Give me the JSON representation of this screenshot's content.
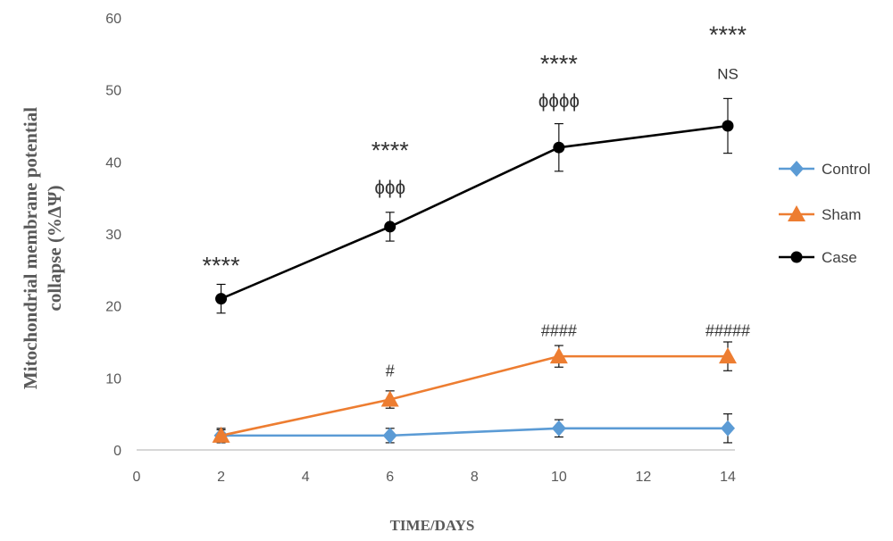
{
  "chart_data": {
    "type": "line",
    "x": [
      2,
      6,
      10,
      14
    ],
    "xlabel": "TIME/DAYS",
    "ylabel": "Mitochondrial membrane potential collapse (%ΔΨ)",
    "ylabel_lines": [
      "Mitochondrial membrane potential",
      "collapse (%ΔΨ)"
    ],
    "xlim": [
      0,
      14
    ],
    "ylim": [
      0,
      60
    ],
    "xticks": [
      0,
      2,
      4,
      6,
      8,
      10,
      12,
      14
    ],
    "yticks": [
      0,
      10,
      20,
      30,
      40,
      50,
      60
    ],
    "grid": false,
    "legend_position": "right",
    "series": [
      {
        "name": "Control",
        "color": "#5b9bd5",
        "marker": "diamond",
        "values": [
          2,
          2,
          3,
          3
        ],
        "errors": [
          1,
          1,
          1.2,
          2
        ]
      },
      {
        "name": "Sham",
        "color": "#ed7d31",
        "marker": "triangle",
        "values": [
          2,
          7,
          13,
          13
        ],
        "errors": [
          0.8,
          1.2,
          1.5,
          2
        ]
      },
      {
        "name": "Case",
        "color": "#000000",
        "marker": "circle",
        "values": [
          21,
          31,
          42,
          45
        ],
        "errors": [
          2,
          2,
          3.3,
          3.8
        ]
      }
    ],
    "annotations": [
      {
        "x": 2,
        "y": 24.5,
        "text": "****",
        "size": 27
      },
      {
        "x": 6,
        "y": 40.5,
        "text": "****",
        "size": 27
      },
      {
        "x": 6,
        "y": 35.6,
        "text": "ɸɸɸ",
        "size": 21
      },
      {
        "x": 10,
        "y": 52.5,
        "text": "****",
        "size": 27
      },
      {
        "x": 10,
        "y": 47.6,
        "text": "ɸɸɸɸ",
        "size": 21
      },
      {
        "x": 14,
        "y": 56.5,
        "text": "****",
        "size": 27
      },
      {
        "x": 14,
        "y": 51.5,
        "text": "NS",
        "size": 17
      },
      {
        "x": 6,
        "y": 10.2,
        "text": "#",
        "size": 18
      },
      {
        "x": 10,
        "y": 15.8,
        "text": "####",
        "size": 18
      },
      {
        "x": 14,
        "y": 15.8,
        "text": "#####",
        "size": 18
      }
    ]
  }
}
